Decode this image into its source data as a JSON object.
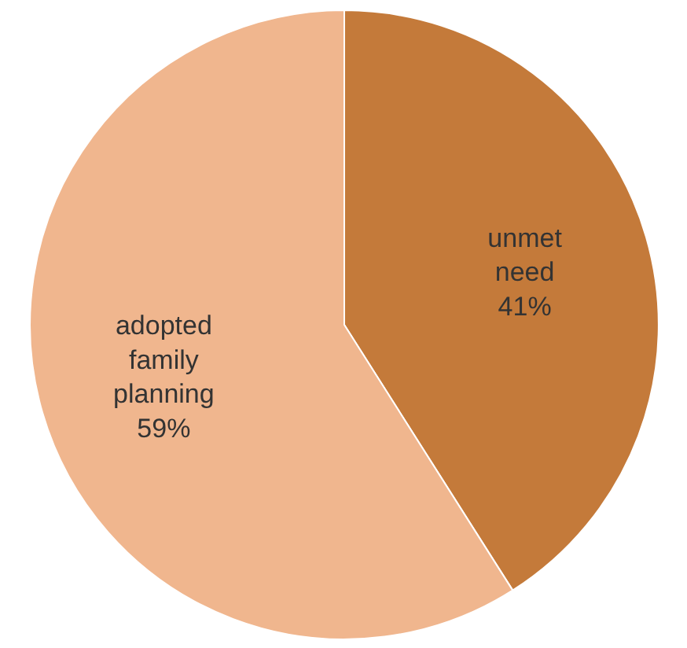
{
  "chart_data": {
    "type": "pie",
    "categories": [
      "unmet need",
      "adopted family planning"
    ],
    "values": [
      41,
      59
    ],
    "colors": [
      "#c47a3a",
      "#f0b68e"
    ],
    "value_labels": [
      "41%",
      "59%"
    ]
  }
}
